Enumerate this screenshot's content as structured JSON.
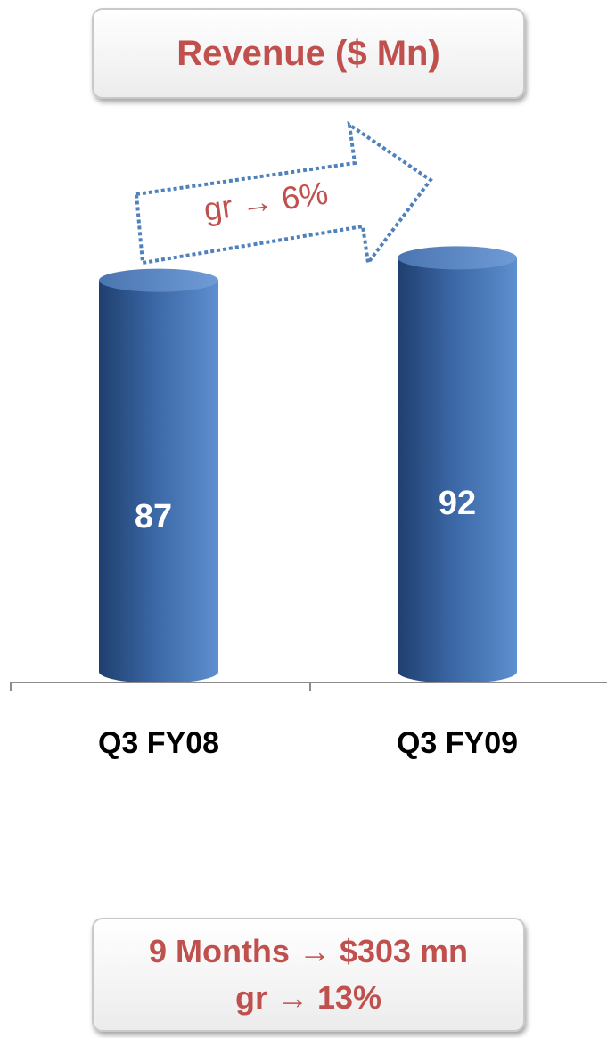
{
  "header": {
    "title": "Revenue ($ Mn)"
  },
  "chart_data": {
    "type": "bar",
    "categories": [
      "Q3 FY08",
      "Q3 FY09"
    ],
    "values": [
      87,
      92
    ],
    "title": "Revenue ($ Mn)",
    "xlabel": "",
    "ylabel": "",
    "ylim": [
      0,
      100
    ],
    "grid": false,
    "legend": "none",
    "bar_color": "#4f81bd",
    "annotations": [
      {
        "text": "gr → 6%",
        "color": "#c0504d"
      }
    ]
  },
  "summary": {
    "line1": "9 Months → $303 mn",
    "line2": "gr → 13%"
  },
  "colors": {
    "accent": "#c0504d",
    "bar": "#4f81bd",
    "arrow": "#4f81bd"
  }
}
